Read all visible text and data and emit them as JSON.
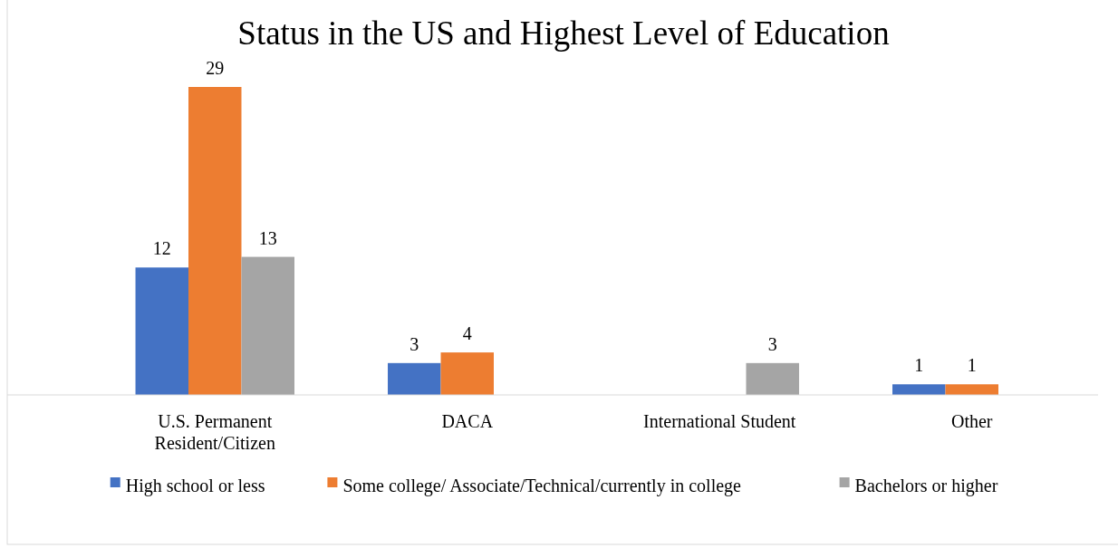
{
  "chart_data": {
    "type": "bar",
    "title": "Status in the US and Highest Level of Education",
    "categories": [
      "U.S. Permanent Resident/Citizen",
      "DACA",
      "International Student",
      "Other"
    ],
    "series": [
      {
        "name": "High school or less",
        "color": "#4472c4",
        "values": [
          12,
          3,
          null,
          1
        ]
      },
      {
        "name": "Some college/ Associate/Technical/currently in college",
        "color": "#ed7d31",
        "values": [
          29,
          4,
          null,
          1
        ]
      },
      {
        "name": "Bachelors or higher",
        "color": "#a5a5a5",
        "values": [
          13,
          null,
          3,
          null
        ]
      }
    ],
    "data_labels": true,
    "legend": "bottom"
  }
}
